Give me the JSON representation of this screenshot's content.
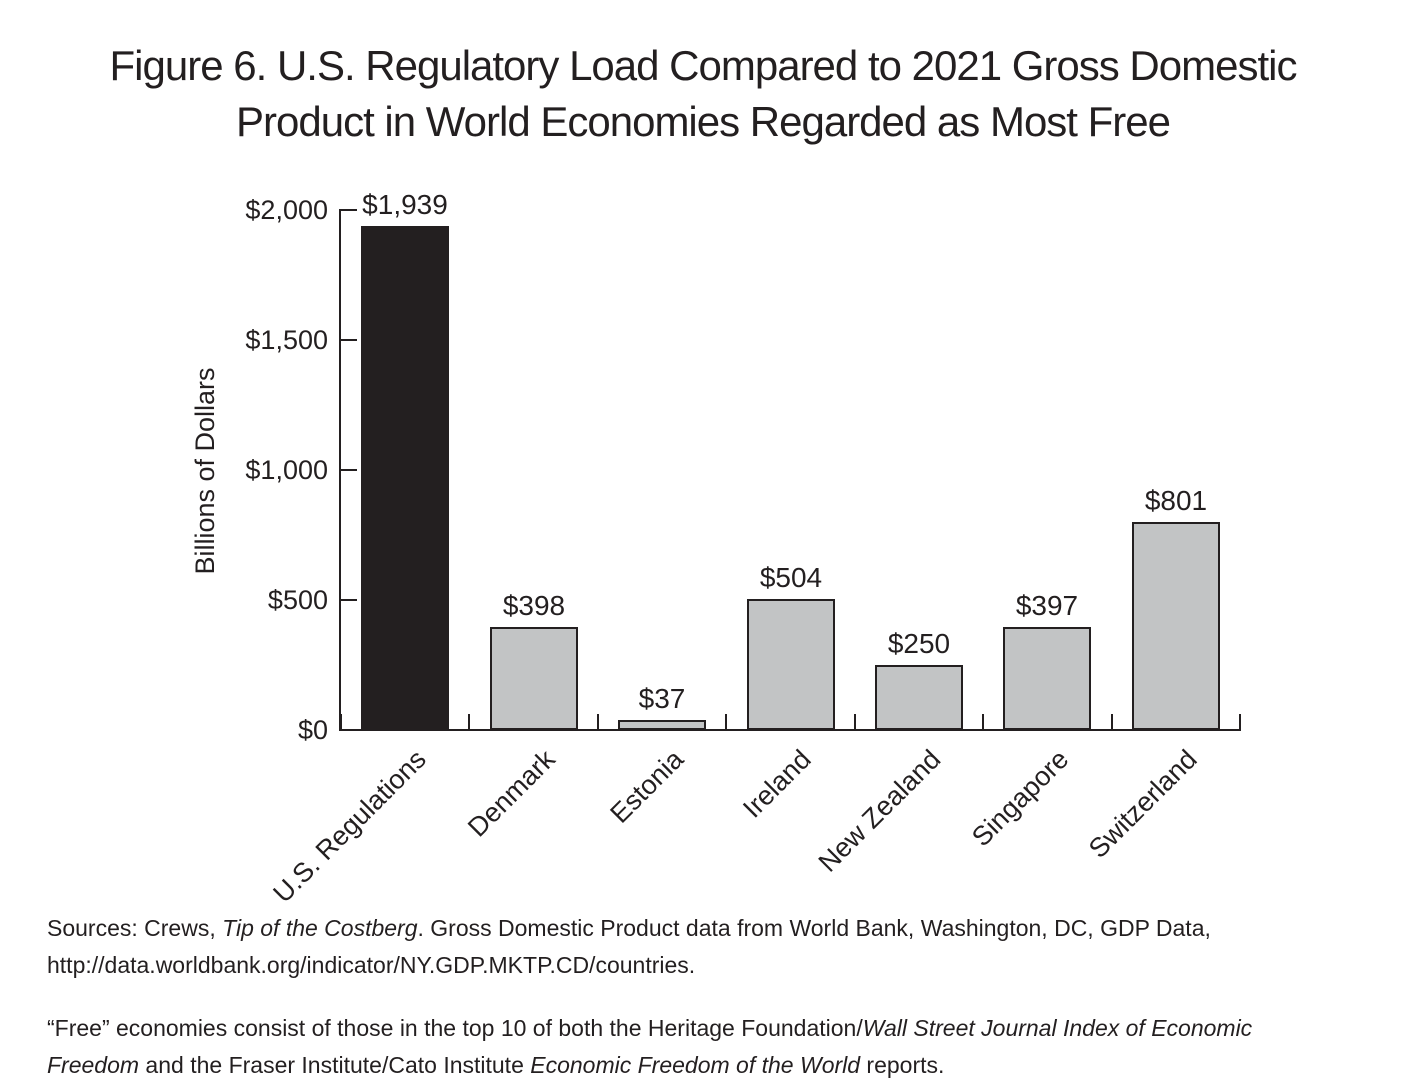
{
  "title": {
    "line1": "Figure 6. U.S. Regulatory Load Compared to 2021 Gross Domestic",
    "line2": "Product in World Economies Regarded as Most Free"
  },
  "chart_data": {
    "type": "bar",
    "title": "Figure 6. U.S. Regulatory Load Compared to 2021 Gross Domestic Product in World Economies Regarded as Most Free",
    "categories": [
      "U.S. Regulations",
      "Denmark",
      "Estonia",
      "Ireland",
      "New Zealand",
      "Singapore",
      "Switzerland"
    ],
    "values": [
      1939,
      398,
      37,
      504,
      250,
      397,
      801
    ],
    "value_labels": [
      "$1,939",
      "$398",
      "$37",
      "$504",
      "$250",
      "$397",
      "$801"
    ],
    "xlabel": "",
    "ylabel": "Billions of Dollars",
    "ylim": [
      0,
      2000
    ],
    "yticks": [
      {
        "value": 0,
        "label": "$0"
      },
      {
        "value": 500,
        "label": "$500"
      },
      {
        "value": 1000,
        "label": "$1,000"
      },
      {
        "value": 1500,
        "label": "$1,500"
      },
      {
        "value": 2000,
        "label": "$2,000"
      }
    ],
    "grid": false,
    "legend": false,
    "bar_style": {
      "default_fill": "#c2c4c5",
      "highlight_fill": "#231f20",
      "highlight_index": 0,
      "border": "#231f20"
    }
  },
  "colors": {
    "text": "#231f20",
    "axis": "#231f20",
    "background": "#ffffff"
  },
  "footnotes": [
    {
      "lines": [
        [
          {
            "t": "Sources: Crews, "
          },
          {
            "t": "Tip of the Costberg",
            "i": true
          },
          {
            "t": ". Gross Domestic Product data from World Bank, Washington, DC, GDP Data,"
          }
        ],
        [
          {
            "t": "http://data.worldbank.org/indicator/NY.GDP.MKTP.CD/countries."
          }
        ]
      ]
    },
    {
      "lines": [
        [
          {
            "t": "“Free” economies consist of those in the top 10 of both the Heritage Foundation/"
          },
          {
            "t": "Wall Street Journal Index of Economic",
            "i": true
          }
        ],
        [
          {
            "t": "Freedom",
            "i": true
          },
          {
            "t": " and the Fraser Institute/Cato Institute "
          },
          {
            "t": "Economic Freedom of the World",
            "i": true
          },
          {
            "t": " reports."
          }
        ]
      ]
    }
  ]
}
